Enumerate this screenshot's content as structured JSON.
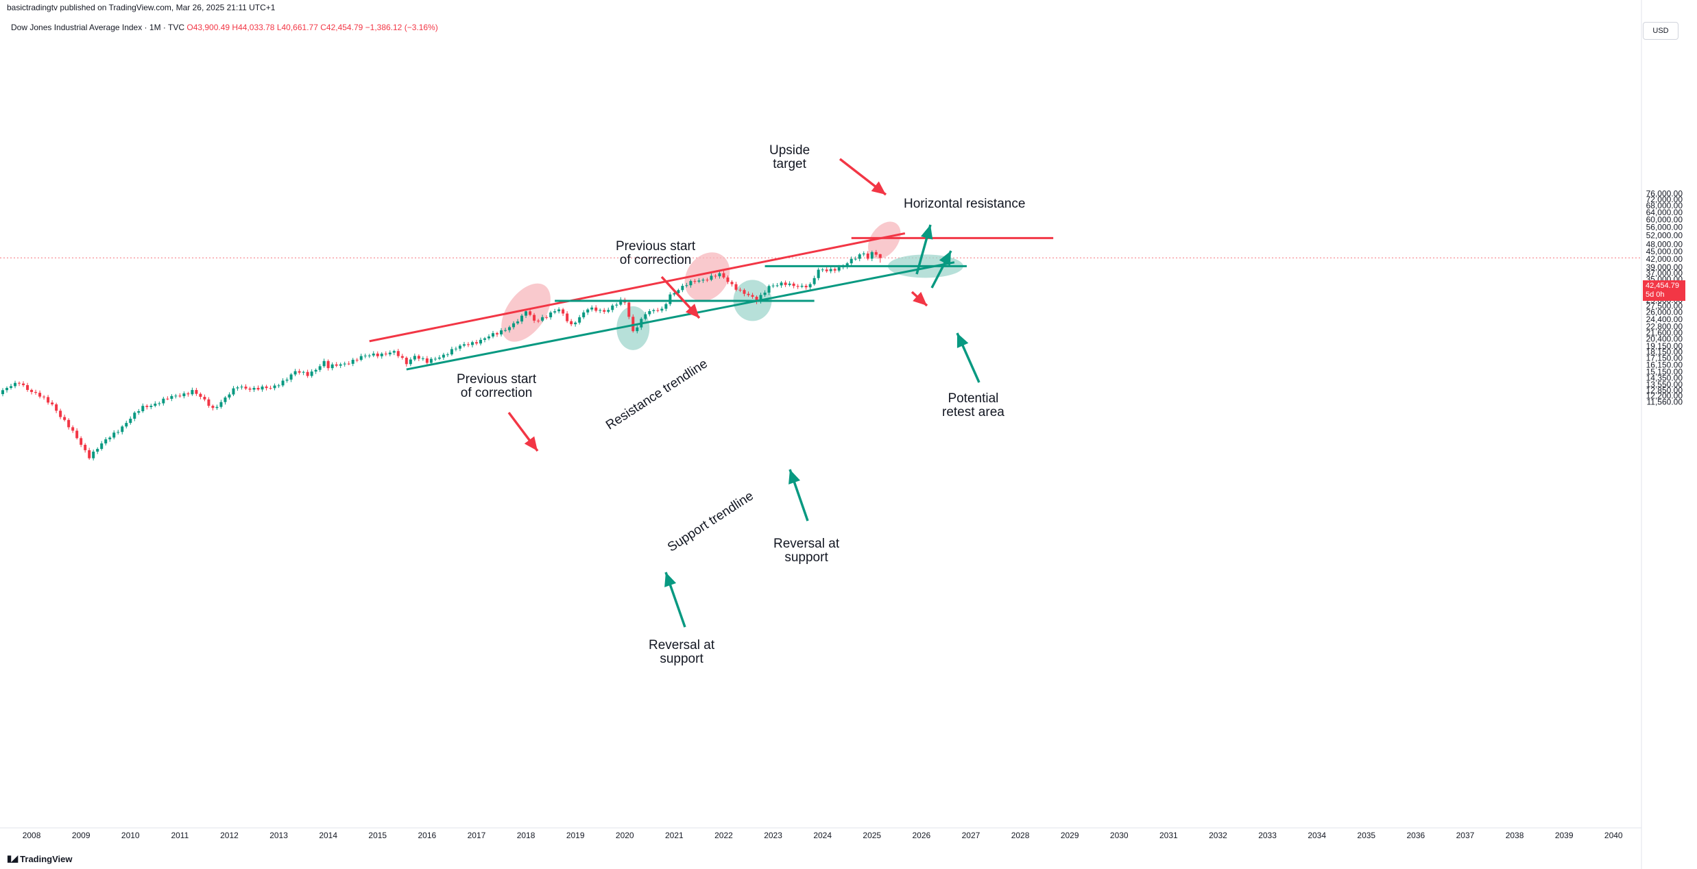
{
  "header": {
    "publish_line": "basictradingtv published on TradingView.com, Mar 26, 2025 21:11 UTC+1",
    "symbol_label": "Dow Jones Industrial Average Index · 1M · TVC",
    "open": "O43,900.49",
    "high": "H44,033.78",
    "low": "L40,661.77",
    "close": "C42,454.79",
    "change": "−1,386.12 (−3.16%)"
  },
  "price_scale": {
    "currency": "USD",
    "last_price": "42,454.79",
    "countdown": "5d 0h"
  },
  "brand": {
    "name": "TradingView"
  },
  "colors": {
    "up": "#089981",
    "down": "#F23645",
    "resistance": "#F23645",
    "support": "#089981",
    "support_fill": "#9FD6CC",
    "resistance_fill": "#F7B7BC"
  },
  "annotations": {
    "upside_target": [
      "Upside",
      "target"
    ],
    "horizontal_resistance": "Horizontal resistance",
    "prev_correction_1": [
      "Previous start",
      "of correction"
    ],
    "prev_correction_2": [
      "Previous start",
      "of correction"
    ],
    "resistance_trendline": "Resistance trendline",
    "support_trendline": "Support trendline",
    "reversal_1": [
      "Reversal at",
      "support"
    ],
    "reversal_2": [
      "Reversal at",
      "support"
    ],
    "retest": [
      "Potential",
      "retest area"
    ]
  },
  "chart_data": {
    "type": "candlestick",
    "title": "Dow Jones Industrial Average Index · 1M · TVC",
    "interval": "1M",
    "y_scale": "log",
    "ylim": [
      11000,
      80000
    ],
    "x_range": [
      "2007-05",
      "2040-06"
    ],
    "x_ticks": [
      "2008",
      "2009",
      "2010",
      "2011",
      "2012",
      "2013",
      "2014",
      "2015",
      "2016",
      "2017",
      "2018",
      "2019",
      "2020",
      "2021",
      "2022",
      "2023",
      "2024",
      "2025",
      "2026",
      "2027",
      "2028",
      "2029",
      "2030",
      "2031",
      "2032",
      "2033",
      "2034",
      "2035",
      "2036",
      "2037",
      "2038",
      "2039",
      "2040"
    ],
    "y_ticks": [
      "76,000.00",
      "72,000.00",
      "68,000.00",
      "64,000.00",
      "60,000.00",
      "56,000.00",
      "52,000.00",
      "48,000.00",
      "45,000.00",
      "42,000.00",
      "39,000.00",
      "37,000.00",
      "35,000.00",
      "33,000.00",
      "31,000.00",
      "29,000.00",
      "27,500.00",
      "26,000.00",
      "24,400.00",
      "22,800.00",
      "21,600.00",
      "20,400.00",
      "19,150.00",
      "18,150.00",
      "17,150.00",
      "16,150.00",
      "15,150.00",
      "14,350.00",
      "13,550.00",
      "12,850.00",
      "12,200.00",
      "11,560.00"
    ],
    "y_tick_values": [
      76000,
      72000,
      68000,
      64000,
      60000,
      56000,
      52000,
      48000,
      45000,
      42000,
      39000,
      37000,
      35000,
      33000,
      31000,
      29000,
      27500,
      26000,
      24400,
      22800,
      21600,
      20400,
      19150,
      18150,
      17150,
      16150,
      15150,
      14350,
      13550,
      12850,
      12200,
      11560
    ],
    "anchors": [
      [
        "2007-05",
        12400
      ],
      [
        "2007-10",
        13900
      ],
      [
        "2008-01",
        12650
      ],
      [
        "2008-06",
        11350
      ],
      [
        "2009-03",
        7100
      ],
      [
        "2010-04",
        11000
      ],
      [
        "2011-04",
        12800
      ],
      [
        "2011-09",
        10900
      ],
      [
        "2012-03",
        13200
      ],
      [
        "2012-11",
        13000
      ],
      [
        "2013-05",
        15100
      ],
      [
        "2013-08",
        14800
      ],
      [
        "2013-12",
        16550
      ],
      [
        "2014-01",
        15700
      ],
      [
        "2014-12",
        17800
      ],
      [
        "2015-05",
        18000
      ],
      [
        "2015-08",
        16500
      ],
      [
        "2015-10",
        17650
      ],
      [
        "2016-01",
        16450
      ],
      [
        "2016-07",
        18450
      ],
      [
        "2016-12",
        19760
      ],
      [
        "2017-06",
        21350
      ],
      [
        "2017-12",
        24700
      ],
      [
        "2018-01",
        26150
      ],
      [
        "2018-03",
        24100
      ],
      [
        "2018-09",
        26450
      ],
      [
        "2018-12",
        23300
      ],
      [
        "2019-04",
        26600
      ],
      [
        "2019-08",
        26400
      ],
      [
        "2019-12",
        28540
      ],
      [
        "2020-01",
        28250
      ],
      [
        "2020-03",
        21900
      ],
      [
        "2020-06",
        25800
      ],
      [
        "2020-10",
        26500
      ],
      [
        "2020-12",
        30600
      ],
      [
        "2021-06",
        34500
      ],
      [
        "2021-12",
        36340
      ],
      [
        "2022-06",
        30800
      ],
      [
        "2022-09",
        28700
      ],
      [
        "2022-12",
        33150
      ],
      [
        "2023-03",
        33300
      ],
      [
        "2023-10",
        33000
      ],
      [
        "2023-12",
        37700
      ],
      [
        "2024-06",
        39100
      ],
      [
        "2024-11",
        44900
      ],
      [
        "2024-12",
        42550
      ],
      [
        "2025-01",
        44550
      ],
      [
        "2025-02",
        43850
      ],
      [
        "2025-03",
        42454.79
      ]
    ],
    "last": {
      "open": 43900.49,
      "high": 44033.78,
      "low": 40661.77,
      "close": 42454.79
    },
    "drawings": {
      "resistance_trendline": [
        [
          "2014-11",
          20000
        ],
        [
          "2025-09",
          53000
        ]
      ],
      "support_trendline": [
        [
          "2015-08",
          15500
        ],
        [
          "2026-09",
          40800
        ]
      ],
      "horizontal_resistance": {
        "price": 50800,
        "from": "2024-08",
        "to": "2028-09"
      },
      "support_level_1": {
        "price": 28800,
        "from": "2018-08",
        "to": "2023-11"
      },
      "support_level_2": {
        "price": 39400,
        "from": "2022-11",
        "to": "2026-12"
      }
    }
  }
}
